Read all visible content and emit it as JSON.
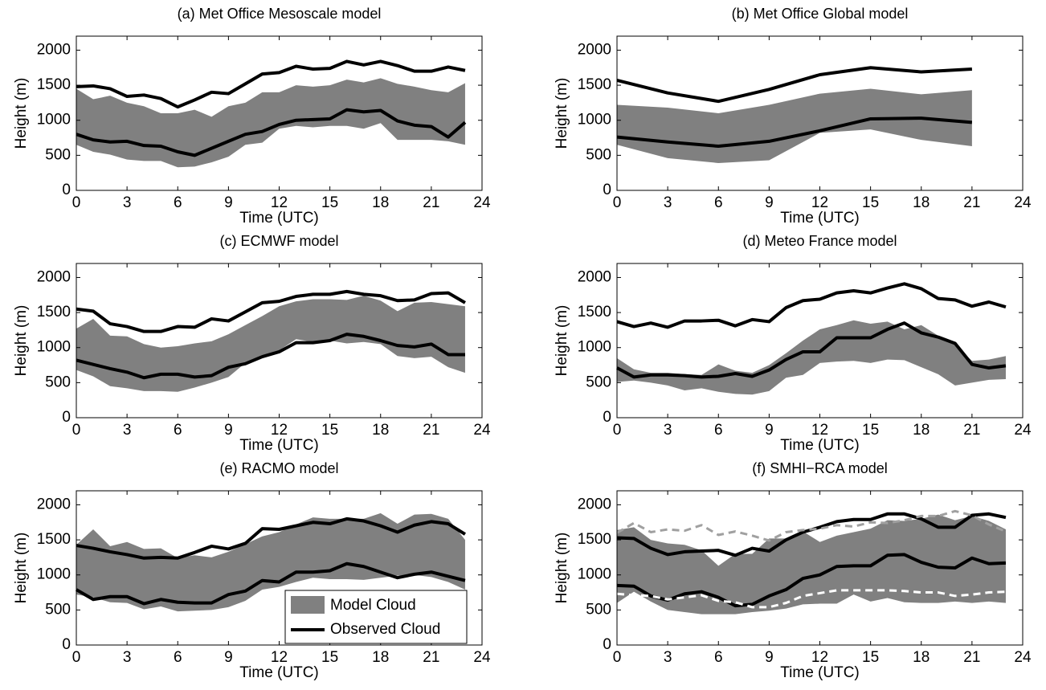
{
  "chart_data": [
    {
      "type": "band-line",
      "title": "(a) Met Office Mesoscale model",
      "xlabel": "Time (UTC)",
      "ylabel": "Height (m)",
      "x": [
        0,
        1,
        2,
        3,
        4,
        5,
        6,
        7,
        8,
        9,
        10,
        11,
        12,
        13,
        14,
        15,
        16,
        17,
        18,
        19,
        20,
        21,
        22,
        23
      ],
      "band": {
        "color": "#808080",
        "upper": [
          1450,
          1300,
          1350,
          1250,
          1200,
          1100,
          1100,
          1150,
          1050,
          1200,
          1250,
          1400,
          1400,
          1500,
          1480,
          1500,
          1580,
          1540,
          1600,
          1520,
          1480,
          1430,
          1400,
          1530
        ],
        "lower": [
          650,
          550,
          510,
          440,
          420,
          420,
          330,
          340,
          400,
          480,
          650,
          680,
          880,
          920,
          900,
          920,
          920,
          880,
          960,
          720,
          720,
          720,
          700,
          650
        ]
      },
      "series": [
        {
          "color": "#000000",
          "values": [
            800,
            720,
            690,
            700,
            640,
            630,
            550,
            500,
            600,
            700,
            800,
            840,
            940,
            1000,
            1010,
            1020,
            1150,
            1120,
            1140,
            990,
            930,
            910,
            760,
            970
          ]
        },
        {
          "color": "#000000",
          "values": [
            1480,
            1490,
            1450,
            1340,
            1360,
            1310,
            1190,
            1290,
            1400,
            1380,
            1520,
            1660,
            1680,
            1770,
            1730,
            1740,
            1840,
            1790,
            1840,
            1780,
            1700,
            1700,
            1760,
            1710
          ]
        }
      ],
      "xlim": [
        0,
        24
      ],
      "xticks": [
        0,
        3,
        6,
        9,
        12,
        15,
        18,
        21,
        24
      ],
      "ylim": [
        0,
        2200
      ],
      "yticks": [
        0,
        500,
        1000,
        1500,
        2000
      ]
    },
    {
      "type": "band-line",
      "title": "(b) Met Office Global model",
      "xlabel": "Time (UTC)",
      "ylabel": "Height (m)",
      "x": [
        0,
        3,
        6,
        9,
        12,
        15,
        18,
        21
      ],
      "band": {
        "color": "#808080",
        "upper": [
          1220,
          1180,
          1100,
          1220,
          1380,
          1450,
          1370,
          1430
        ],
        "lower": [
          650,
          460,
          390,
          430,
          820,
          870,
          720,
          630
        ]
      },
      "series": [
        {
          "color": "#000000",
          "values": [
            760,
            690,
            630,
            700,
            850,
            1020,
            1030,
            970
          ]
        },
        {
          "color": "#000000",
          "values": [
            1570,
            1390,
            1270,
            1440,
            1650,
            1750,
            1690,
            1730
          ]
        }
      ],
      "xlim": [
        0,
        24
      ],
      "xticks": [
        0,
        3,
        6,
        9,
        12,
        15,
        18,
        21,
        24
      ],
      "ylim": [
        0,
        2200
      ],
      "yticks": [
        0,
        500,
        1000,
        1500,
        2000
      ]
    },
    {
      "type": "band-line",
      "title": "(c) ECMWF model",
      "xlabel": "Time (UTC)",
      "ylabel": "Height (m)",
      "x": [
        0,
        1,
        2,
        3,
        4,
        5,
        6,
        7,
        8,
        9,
        10,
        11,
        12,
        13,
        14,
        15,
        16,
        17,
        18,
        19,
        20,
        21,
        22,
        23
      ],
      "band": {
        "color": "#808080",
        "upper": [
          1270,
          1410,
          1170,
          1160,
          1050,
          1000,
          1020,
          1060,
          1090,
          1190,
          1320,
          1450,
          1590,
          1660,
          1690,
          1690,
          1680,
          1740,
          1670,
          1520,
          1640,
          1650,
          1620,
          1590
        ],
        "lower": [
          680,
          590,
          450,
          420,
          380,
          380,
          370,
          430,
          500,
          580,
          780,
          850,
          960,
          1120,
          1080,
          1100,
          1060,
          1080,
          1050,
          880,
          850,
          870,
          720,
          640
        ]
      },
      "series": [
        {
          "color": "#000000",
          "values": [
            820,
            760,
            700,
            650,
            570,
            620,
            620,
            580,
            600,
            720,
            770,
            870,
            940,
            1070,
            1070,
            1100,
            1190,
            1160,
            1100,
            1030,
            1010,
            1050,
            900,
            900
          ]
        },
        {
          "color": "#000000",
          "values": [
            1550,
            1520,
            1340,
            1300,
            1230,
            1230,
            1300,
            1290,
            1410,
            1380,
            1510,
            1640,
            1660,
            1730,
            1760,
            1760,
            1800,
            1760,
            1740,
            1670,
            1680,
            1770,
            1780,
            1640
          ]
        }
      ],
      "xlim": [
        0,
        24
      ],
      "xticks": [
        0,
        3,
        6,
        9,
        12,
        15,
        18,
        21,
        24
      ],
      "ylim": [
        0,
        2200
      ],
      "yticks": [
        0,
        500,
        1000,
        1500,
        2000
      ]
    },
    {
      "type": "band-line",
      "title": "(d) Meteo France model",
      "xlabel": "Time (UTC)",
      "ylabel": "Height (m)",
      "x": [
        0,
        1,
        2,
        3,
        4,
        5,
        6,
        7,
        8,
        9,
        10,
        11,
        12,
        13,
        14,
        15,
        16,
        17,
        18,
        19,
        20,
        21,
        22,
        23
      ],
      "band": {
        "color": "#808080",
        "upper": [
          850,
          690,
          640,
          640,
          620,
          610,
          760,
          670,
          640,
          750,
          920,
          1100,
          1260,
          1320,
          1390,
          1340,
          1370,
          1260,
          1320,
          1170,
          1040,
          810,
          830,
          880
        ],
        "lower": [
          510,
          530,
          500,
          460,
          390,
          420,
          370,
          340,
          330,
          380,
          570,
          610,
          780,
          800,
          810,
          780,
          830,
          820,
          720,
          620,
          460,
          500,
          540,
          550
        ]
      },
      "series": [
        {
          "color": "#000000",
          "values": [
            710,
            580,
            610,
            610,
            600,
            580,
            590,
            630,
            590,
            680,
            830,
            940,
            940,
            1140,
            1140,
            1140,
            1260,
            1350,
            1210,
            1150,
            1060,
            760,
            710,
            740
          ]
        },
        {
          "color": "#000000",
          "values": [
            1370,
            1300,
            1350,
            1290,
            1380,
            1380,
            1390,
            1310,
            1400,
            1370,
            1570,
            1670,
            1690,
            1780,
            1810,
            1780,
            1850,
            1910,
            1840,
            1700,
            1680,
            1590,
            1650,
            1580
          ]
        }
      ],
      "xlim": [
        0,
        24
      ],
      "xticks": [
        0,
        3,
        6,
        9,
        12,
        15,
        18,
        21,
        24
      ],
      "ylim": [
        0,
        2200
      ],
      "yticks": [
        0,
        500,
        1000,
        1500,
        2000
      ]
    },
    {
      "type": "band-line",
      "title": "(e) RACMO model",
      "xlabel": "Time (UTC)",
      "ylabel": "Height (m)",
      "x": [
        0,
        1,
        2,
        3,
        4,
        5,
        6,
        7,
        8,
        9,
        10,
        11,
        12,
        13,
        14,
        15,
        16,
        17,
        18,
        19,
        20,
        21,
        22,
        23
      ],
      "band": {
        "name": "Model Cloud",
        "color": "#808080",
        "upper": [
          1430,
          1650,
          1410,
          1470,
          1370,
          1380,
          1240,
          1280,
          1250,
          1330,
          1440,
          1550,
          1610,
          1720,
          1820,
          1800,
          1800,
          1800,
          1880,
          1730,
          1860,
          1870,
          1800,
          1500
        ],
        "lower": [
          720,
          680,
          610,
          600,
          510,
          550,
          480,
          490,
          500,
          540,
          630,
          790,
          830,
          900,
          960,
          940,
          940,
          930,
          960,
          990,
          1000,
          970,
          900,
          790
        ]
      },
      "series": [
        {
          "name": "Observed Cloud",
          "color": "#000000",
          "values": [
            790,
            650,
            690,
            690,
            590,
            650,
            610,
            600,
            600,
            720,
            770,
            920,
            900,
            1040,
            1040,
            1060,
            1160,
            1120,
            1040,
            960,
            1010,
            1040,
            980,
            920
          ]
        },
        {
          "color": "#000000",
          "values": [
            1420,
            1380,
            1330,
            1290,
            1240,
            1250,
            1240,
            1320,
            1410,
            1370,
            1450,
            1660,
            1650,
            1700,
            1750,
            1730,
            1800,
            1770,
            1700,
            1610,
            1710,
            1760,
            1730,
            1580
          ]
        }
      ],
      "legend": "lower center",
      "xlim": [
        0,
        24
      ],
      "xticks": [
        0,
        3,
        6,
        9,
        12,
        15,
        18,
        21,
        24
      ],
      "ylim": [
        0,
        2200
      ],
      "yticks": [
        0,
        500,
        1000,
        1500,
        2000
      ]
    },
    {
      "type": "band-line",
      "title": "(f) SMHI−RCA model",
      "xlabel": "Time (UTC)",
      "ylabel": "Height (m)",
      "x": [
        0,
        1,
        2,
        3,
        4,
        5,
        6,
        7,
        8,
        9,
        10,
        11,
        12,
        13,
        14,
        15,
        16,
        17,
        18,
        19,
        20,
        21,
        22,
        23
      ],
      "band": {
        "color": "#808080",
        "upper": [
          1640,
          1680,
          1500,
          1450,
          1430,
          1350,
          1130,
          1300,
          1300,
          1520,
          1520,
          1620,
          1470,
          1560,
          1610,
          1660,
          1780,
          1770,
          1800,
          1860,
          1780,
          1840,
          1770,
          1650
        ],
        "lower": [
          600,
          760,
          620,
          500,
          470,
          440,
          440,
          440,
          470,
          490,
          520,
          580,
          590,
          590,
          720,
          620,
          670,
          610,
          600,
          600,
          620,
          600,
          620,
          600
        ]
      },
      "series": [
        {
          "color": "#000000",
          "values": [
            850,
            840,
            700,
            640,
            730,
            760,
            680,
            560,
            580,
            700,
            790,
            950,
            1000,
            1120,
            1130,
            1130,
            1280,
            1290,
            1180,
            1110,
            1100,
            1240,
            1160,
            1170
          ]
        },
        {
          "color": "#000000",
          "values": [
            1530,
            1520,
            1380,
            1290,
            1330,
            1340,
            1350,
            1280,
            1380,
            1340,
            1500,
            1610,
            1680,
            1760,
            1790,
            1790,
            1870,
            1870,
            1800,
            1680,
            1680,
            1850,
            1870,
            1820
          ]
        },
        {
          "color": "#a0a0a0",
          "dashed": true,
          "values": [
            1600,
            1740,
            1610,
            1650,
            1630,
            1710,
            1570,
            1620,
            1560,
            1490,
            1610,
            1640,
            1660,
            1710,
            1690,
            1750,
            1740,
            1780,
            1840,
            1840,
            1910,
            1850,
            1720,
            1620
          ]
        },
        {
          "color": "#ffffff",
          "dashed": true,
          "values": [
            730,
            710,
            700,
            650,
            680,
            710,
            630,
            610,
            540,
            540,
            600,
            700,
            740,
            780,
            780,
            780,
            780,
            770,
            750,
            750,
            700,
            720,
            750,
            760
          ]
        }
      ],
      "xlim": [
        0,
        24
      ],
      "xticks": [
        0,
        3,
        6,
        9,
        12,
        15,
        18,
        21,
        24
      ],
      "ylim": [
        0,
        2200
      ],
      "yticks": [
        0,
        500,
        1000,
        1500,
        2000
      ]
    }
  ]
}
